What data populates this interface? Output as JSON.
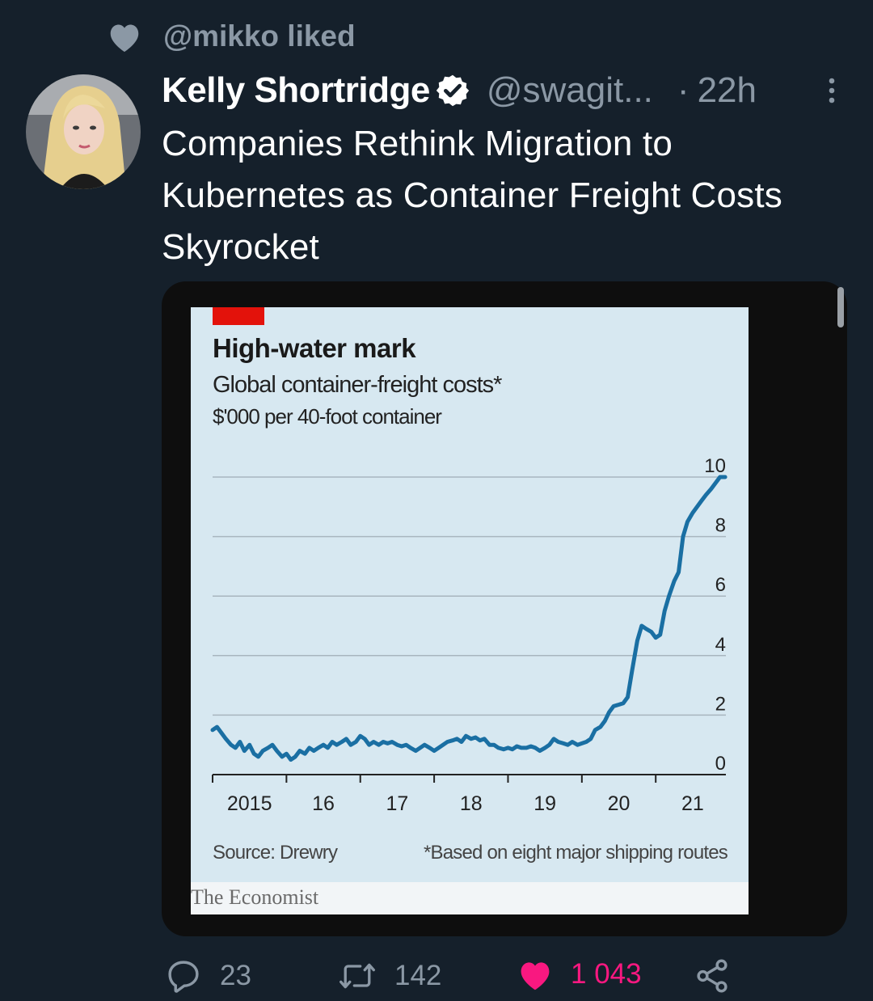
{
  "social_context": {
    "text": "@mikko liked"
  },
  "tweet": {
    "author_name": "Kelly Shortridge",
    "handle": "@swagit...",
    "separator": "·",
    "time": "22h",
    "text": "Companies Rethink Migration to Kubernetes as Container Freight Costs Skyrocket"
  },
  "chart": {
    "title": "High-water mark",
    "subtitle": "Global container-freight costs*",
    "units": "$'000 per 40-foot container",
    "source": "Source: Drewry",
    "footnote": "*Based on eight major shipping routes",
    "brand": "The Economist",
    "accent_color": "#e3120b",
    "line_color": "#1a6fa3"
  },
  "chart_data": {
    "type": "line",
    "title": "High-water mark",
    "subtitle": "Global container-freight costs*",
    "ylabel": "$'000 per 40-foot container",
    "ylim": [
      0,
      10
    ],
    "yticks": [
      "0",
      "2",
      "4",
      "6",
      "8",
      "10"
    ],
    "xlim": [
      2015.0,
      2021.95
    ],
    "xticks": [
      "2015",
      "16",
      "17",
      "18",
      "19",
      "20",
      "21"
    ],
    "grid": true,
    "series": [
      {
        "x": [
          2015.0,
          2015.06,
          2015.12,
          2015.18,
          2015.25,
          2015.31,
          2015.37,
          2015.43,
          2015.5,
          2015.56,
          2015.62,
          2015.68,
          2015.75,
          2015.81,
          2015.87,
          2015.94,
          2016.0,
          2016.06,
          2016.12,
          2016.18,
          2016.25,
          2016.31,
          2016.37,
          2016.43,
          2016.5,
          2016.56,
          2016.62,
          2016.68,
          2016.75,
          2016.81,
          2016.87,
          2016.94,
          2017.0,
          2017.06,
          2017.12,
          2017.18,
          2017.25,
          2017.31,
          2017.37,
          2017.43,
          2017.5,
          2017.56,
          2017.62,
          2017.68,
          2017.75,
          2017.81,
          2017.87,
          2017.94,
          2018.0,
          2018.06,
          2018.12,
          2018.18,
          2018.25,
          2018.31,
          2018.37,
          2018.43,
          2018.5,
          2018.56,
          2018.62,
          2018.68,
          2018.75,
          2018.81,
          2018.87,
          2018.94,
          2019.0,
          2019.06,
          2019.12,
          2019.18,
          2019.25,
          2019.31,
          2019.37,
          2019.43,
          2019.5,
          2019.56,
          2019.62,
          2019.68,
          2019.75,
          2019.81,
          2019.87,
          2019.94,
          2020.0,
          2020.06,
          2020.12,
          2020.18,
          2020.25,
          2020.31,
          2020.37,
          2020.43,
          2020.5,
          2020.56,
          2020.62,
          2020.68,
          2020.75,
          2020.81,
          2020.87,
          2020.94,
          2021.0,
          2021.06,
          2021.12,
          2021.18,
          2021.25,
          2021.31,
          2021.37,
          2021.43,
          2021.5,
          2021.56,
          2021.62,
          2021.68,
          2021.75,
          2021.81,
          2021.87,
          2021.94
        ],
        "y": [
          1.5,
          1.6,
          1.4,
          1.2,
          1.0,
          0.9,
          1.1,
          0.8,
          1.0,
          0.7,
          0.6,
          0.8,
          0.9,
          1.0,
          0.8,
          0.6,
          0.7,
          0.5,
          0.6,
          0.8,
          0.7,
          0.9,
          0.8,
          0.9,
          1.0,
          0.9,
          1.1,
          1.0,
          1.1,
          1.2,
          1.0,
          1.1,
          1.3,
          1.2,
          1.0,
          1.1,
          1.0,
          1.1,
          1.05,
          1.1,
          1.0,
          0.95,
          1.0,
          0.9,
          0.8,
          0.9,
          1.0,
          0.9,
          0.8,
          0.9,
          1.0,
          1.1,
          1.15,
          1.2,
          1.1,
          1.3,
          1.2,
          1.25,
          1.15,
          1.2,
          1.0,
          1.0,
          0.9,
          0.85,
          0.9,
          0.85,
          0.95,
          0.9,
          0.9,
          0.95,
          0.9,
          0.8,
          0.9,
          1.0,
          1.2,
          1.1,
          1.05,
          1.0,
          1.1,
          1.0,
          1.05,
          1.1,
          1.2,
          1.5,
          1.6,
          1.8,
          2.1,
          2.3,
          2.35,
          2.4,
          2.6,
          3.5,
          4.5,
          5.0,
          4.9,
          4.8,
          4.6,
          4.7,
          5.5,
          6.0,
          6.5,
          6.8,
          8.0,
          8.5,
          8.8,
          9.0,
          9.2,
          9.4,
          9.6,
          9.8,
          10.0,
          10.0
        ]
      }
    ]
  },
  "actions": {
    "reply_count": "23",
    "retweet_count": "142",
    "like_count": "1 043",
    "like_color": "#f91880"
  }
}
